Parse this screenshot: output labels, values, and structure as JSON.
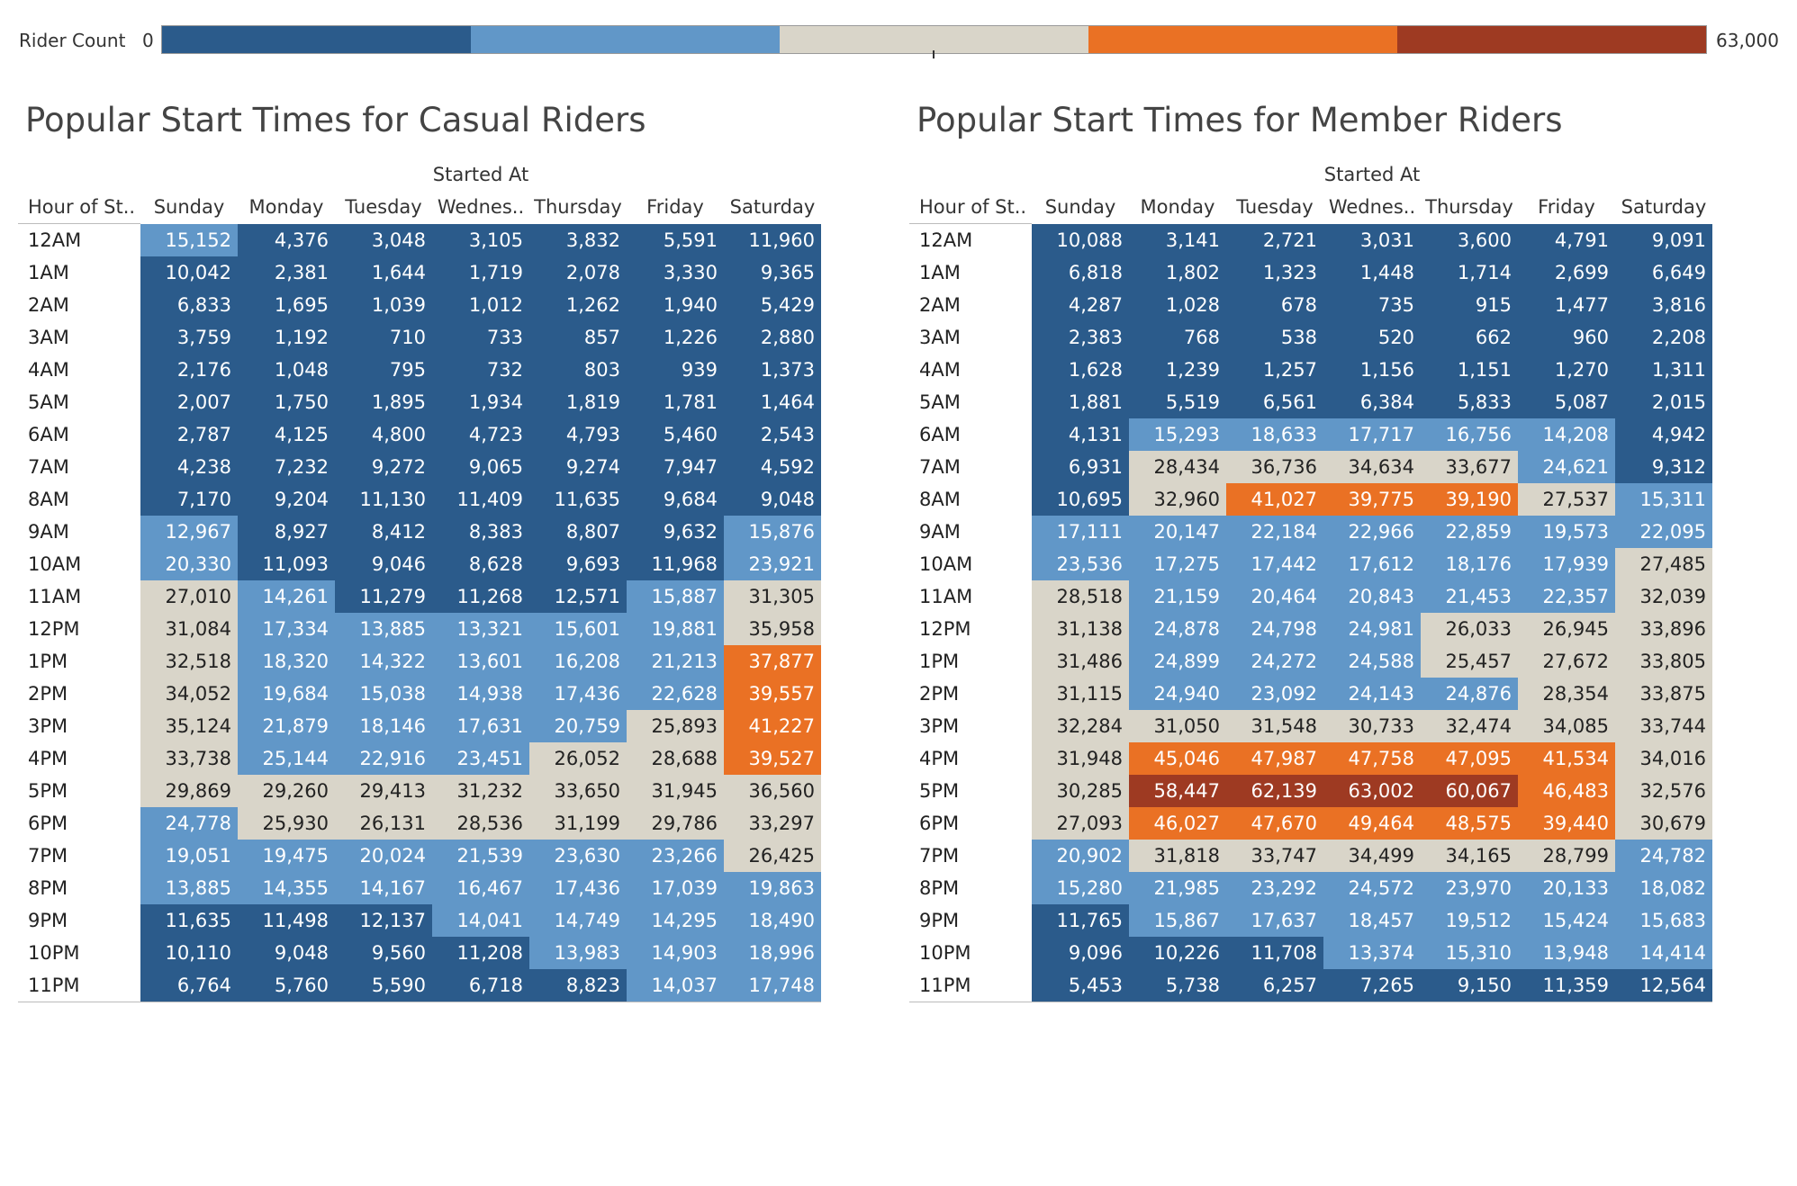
{
  "legend": {
    "title": "Rider Count",
    "min_label": "0",
    "max_label": "63,000",
    "min": 0,
    "max": 63000,
    "colors": [
      "#2b5b8b",
      "#6197c8",
      "#d9d5c9",
      "#ea7124",
      "#9e3a22"
    ]
  },
  "chart_data": [
    {
      "type": "heatmap",
      "title": "Popular Start Times for Casual Riders",
      "column_group_label": "Started At",
      "row_header": "Hour of St..",
      "columns": [
        "Sunday",
        "Monday",
        "Tuesday",
        "Wednes..",
        "Thursday",
        "Friday",
        "Saturday"
      ],
      "rows": [
        "12AM",
        "1AM",
        "2AM",
        "3AM",
        "4AM",
        "5AM",
        "6AM",
        "7AM",
        "8AM",
        "9AM",
        "10AM",
        "11AM",
        "12PM",
        "1PM",
        "2PM",
        "3PM",
        "4PM",
        "5PM",
        "6PM",
        "7PM",
        "8PM",
        "9PM",
        "10PM",
        "11PM"
      ],
      "values": [
        [
          15152,
          4376,
          3048,
          3105,
          3832,
          5591,
          11960
        ],
        [
          10042,
          2381,
          1644,
          1719,
          2078,
          3330,
          9365
        ],
        [
          6833,
          1695,
          1039,
          1012,
          1262,
          1940,
          5429
        ],
        [
          3759,
          1192,
          710,
          733,
          857,
          1226,
          2880
        ],
        [
          2176,
          1048,
          795,
          732,
          803,
          939,
          1373
        ],
        [
          2007,
          1750,
          1895,
          1934,
          1819,
          1781,
          1464
        ],
        [
          2787,
          4125,
          4800,
          4723,
          4793,
          5460,
          2543
        ],
        [
          4238,
          7232,
          9272,
          9065,
          9274,
          7947,
          4592
        ],
        [
          7170,
          9204,
          11130,
          11409,
          11635,
          9684,
          9048
        ],
        [
          12967,
          8927,
          8412,
          8383,
          8807,
          9632,
          15876
        ],
        [
          20330,
          11093,
          9046,
          8628,
          9693,
          11968,
          23921
        ],
        [
          27010,
          14261,
          11279,
          11268,
          12571,
          15887,
          31305
        ],
        [
          31084,
          17334,
          13885,
          13321,
          15601,
          19881,
          35958
        ],
        [
          32518,
          18320,
          14322,
          13601,
          16208,
          21213,
          37877
        ],
        [
          34052,
          19684,
          15038,
          14938,
          17436,
          22628,
          39557
        ],
        [
          35124,
          21879,
          18146,
          17631,
          20759,
          25893,
          41227
        ],
        [
          33738,
          25144,
          22916,
          23451,
          26052,
          28688,
          39527
        ],
        [
          29869,
          29260,
          29413,
          31232,
          33650,
          31945,
          36560
        ],
        [
          24778,
          25930,
          26131,
          28536,
          31199,
          29786,
          33297
        ],
        [
          19051,
          19475,
          20024,
          21539,
          23630,
          23266,
          26425
        ],
        [
          13885,
          14355,
          14167,
          16467,
          17436,
          17039,
          19863
        ],
        [
          11635,
          11498,
          12137,
          14041,
          14749,
          14295,
          18490
        ],
        [
          10110,
          9048,
          9560,
          11208,
          13983,
          14903,
          18996
        ],
        [
          6764,
          5760,
          5590,
          6718,
          8823,
          14037,
          17748
        ]
      ]
    },
    {
      "type": "heatmap",
      "title": "Popular Start Times for Member Riders",
      "column_group_label": "Started At",
      "row_header": "Hour of St..",
      "columns": [
        "Sunday",
        "Monday",
        "Tuesday",
        "Wednes..",
        "Thursday",
        "Friday",
        "Saturday"
      ],
      "rows": [
        "12AM",
        "1AM",
        "2AM",
        "3AM",
        "4AM",
        "5AM",
        "6AM",
        "7AM",
        "8AM",
        "9AM",
        "10AM",
        "11AM",
        "12PM",
        "1PM",
        "2PM",
        "3PM",
        "4PM",
        "5PM",
        "6PM",
        "7PM",
        "8PM",
        "9PM",
        "10PM",
        "11PM"
      ],
      "values": [
        [
          10088,
          3141,
          2721,
          3031,
          3600,
          4791,
          9091
        ],
        [
          6818,
          1802,
          1323,
          1448,
          1714,
          2699,
          6649
        ],
        [
          4287,
          1028,
          678,
          735,
          915,
          1477,
          3816
        ],
        [
          2383,
          768,
          538,
          520,
          662,
          960,
          2208
        ],
        [
          1628,
          1239,
          1257,
          1156,
          1151,
          1270,
          1311
        ],
        [
          1881,
          5519,
          6561,
          6384,
          5833,
          5087,
          2015
        ],
        [
          4131,
          15293,
          18633,
          17717,
          16756,
          14208,
          4942
        ],
        [
          6931,
          28434,
          36736,
          34634,
          33677,
          24621,
          9312
        ],
        [
          10695,
          32960,
          41027,
          39775,
          39190,
          27537,
          15311
        ],
        [
          17111,
          20147,
          22184,
          22966,
          22859,
          19573,
          22095
        ],
        [
          23536,
          17275,
          17442,
          17612,
          18176,
          17939,
          27485
        ],
        [
          28518,
          21159,
          20464,
          20843,
          21453,
          22357,
          32039
        ],
        [
          31138,
          24878,
          24798,
          24981,
          26033,
          26945,
          33896
        ],
        [
          31486,
          24899,
          24272,
          24588,
          25457,
          27672,
          33805
        ],
        [
          31115,
          24940,
          23092,
          24143,
          24876,
          28354,
          33875
        ],
        [
          32284,
          31050,
          31548,
          30733,
          32474,
          34085,
          33744
        ],
        [
          31948,
          45046,
          47987,
          47758,
          47095,
          41534,
          34016
        ],
        [
          30285,
          58447,
          62139,
          63002,
          60067,
          46483,
          32576
        ],
        [
          27093,
          46027,
          47670,
          49464,
          48575,
          39440,
          30679
        ],
        [
          20902,
          31818,
          33747,
          34499,
          34165,
          28799,
          24782
        ],
        [
          15280,
          21985,
          23292,
          24572,
          23970,
          20133,
          18082
        ],
        [
          11765,
          15867,
          17637,
          18457,
          19512,
          15424,
          15683
        ],
        [
          9096,
          10226,
          11708,
          13374,
          15310,
          13948,
          14414
        ],
        [
          5453,
          5738,
          6257,
          7265,
          9150,
          11359,
          12564
        ]
      ]
    }
  ]
}
